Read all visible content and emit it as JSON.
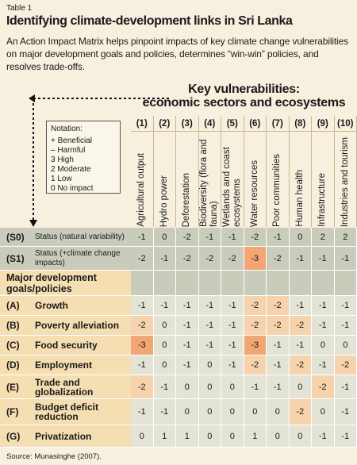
{
  "label": "Table 1",
  "title": "Identifying climate-development links in Sri Lanka",
  "description": "An Action Impact Matrix helps pinpoint impacts of key climate change vulnerabilities on major development goals and policies, determines “win-win” policies, and resolves trade-offs.",
  "header": {
    "line1": "Key vulnerabilities:",
    "line2": "economic sectors and ecosystems"
  },
  "notation": {
    "title": "Notation:",
    "items": [
      "+ Beneficial",
      "– Harmful",
      "3 High",
      "2 Moderate",
      "1 Low",
      "0 No impact"
    ]
  },
  "columns": [
    {
      "number": "(1)",
      "label": "Agricultural output"
    },
    {
      "number": "(2)",
      "label": "Hydro power"
    },
    {
      "number": "(3)",
      "label": "Deforestation"
    },
    {
      "number": "(4)",
      "label": "Biodiversity (flora and fauna)"
    },
    {
      "number": "(5)",
      "label": "Wetlands and coast ecosystems"
    },
    {
      "number": "(6)",
      "label": "Water resources"
    },
    {
      "number": "(7)",
      "label": "Poor communities"
    },
    {
      "number": "(8)",
      "label": "Human health"
    },
    {
      "number": "(9)",
      "label": "Infrastructure"
    },
    {
      "number": "(10)",
      "label": "Industries and tourism"
    }
  ],
  "status_rows": [
    {
      "code": "(S0)",
      "label": "Status (natural variability)",
      "values": [
        -1,
        0,
        -2,
        -1,
        -1,
        -2,
        -1,
        0,
        2,
        2
      ]
    },
    {
      "code": "(S1)",
      "label": "Status (+climate change impacts)",
      "values": [
        -2,
        -1,
        -2,
        -2,
        -2,
        -3,
        -2,
        -1,
        -1,
        -1
      ]
    }
  ],
  "section_heading": "Major development goals/policies",
  "policy_rows": [
    {
      "code": "(A)",
      "label": "Growth",
      "values": [
        -1,
        -1,
        -1,
        -1,
        -1,
        -2,
        -2,
        -1,
        -1,
        -1
      ]
    },
    {
      "code": "(B)",
      "label": "Poverty alleviation",
      "values": [
        -2,
        0,
        -1,
        -1,
        -1,
        -2,
        -2,
        -2,
        -1,
        -1
      ]
    },
    {
      "code": "(C)",
      "label": "Food security",
      "values": [
        -3,
        0,
        -1,
        -1,
        -1,
        -3,
        -1,
        -1,
        0,
        0
      ]
    },
    {
      "code": "(D)",
      "label": "Employment",
      "values": [
        -1,
        0,
        -1,
        0,
        -1,
        -2,
        -1,
        -2,
        -1,
        -2
      ]
    },
    {
      "code": "(E)",
      "label": "Trade and globalization",
      "values": [
        -2,
        -1,
        0,
        0,
        0,
        -1,
        -1,
        0,
        -2,
        -1
      ]
    },
    {
      "code": "(F)",
      "label": "Budget deficit reduction",
      "values": [
        -1,
        -1,
        0,
        0,
        0,
        0,
        0,
        -2,
        0,
        -1
      ]
    },
    {
      "code": "(G)",
      "label": "Privatization",
      "values": [
        0,
        1,
        1,
        0,
        0,
        1,
        0,
        0,
        -1,
        -1
      ]
    }
  ],
  "source": "Source: Munasinghe (2007)."
}
